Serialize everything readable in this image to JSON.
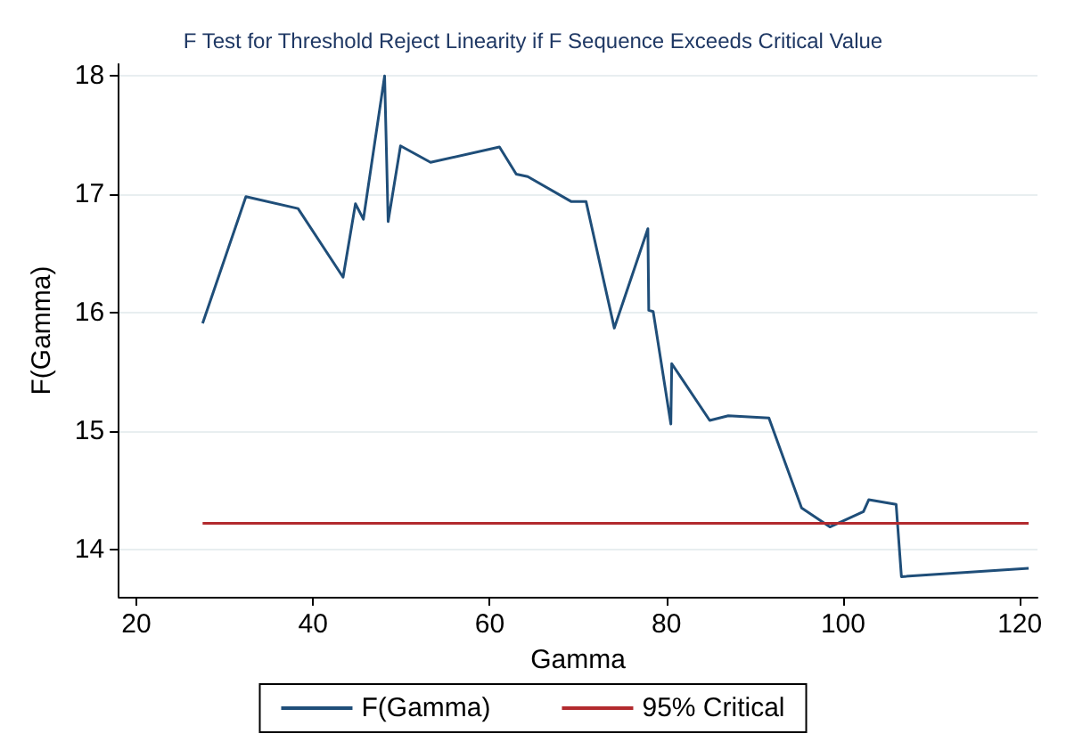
{
  "chart_data": {
    "type": "line",
    "title": "F Test for Threshold Reject Linearity if F Sequence Exceeds Critical Value",
    "xlabel": "Gamma",
    "ylabel": "F(Gamma)",
    "xlim": [
      18,
      122
    ],
    "xticks": [
      20,
      40,
      60,
      80,
      100,
      120
    ],
    "ylim": [
      13.6,
      18.1
    ],
    "yticks": [
      14,
      15,
      16,
      17,
      18
    ],
    "grid": "y",
    "legend": "bottom",
    "series": [
      {
        "name": "F(Gamma)",
        "color": "#1f4e79",
        "x": [
          27.5,
          32.4,
          38.3,
          43.4,
          44.8,
          45.7,
          48.1,
          48.5,
          49.9,
          53.3,
          61.1,
          63.0,
          64.3,
          69.2,
          70.9,
          74.1,
          77.9,
          78.0,
          78.5,
          80.5,
          80.6,
          84.9,
          87.0,
          91.6,
          95.3,
          98.5,
          102.3,
          102.9,
          106.0,
          106.6,
          121.0
        ],
        "values": [
          15.91,
          16.98,
          16.88,
          16.3,
          16.92,
          16.79,
          18.0,
          16.77,
          17.41,
          17.27,
          17.4,
          17.17,
          17.15,
          16.94,
          16.94,
          15.87,
          16.71,
          16.02,
          16.01,
          15.06,
          15.57,
          15.09,
          15.13,
          15.11,
          14.35,
          14.19,
          14.32,
          14.42,
          14.38,
          13.77,
          13.84
        ]
      },
      {
        "name": "95% Critical",
        "color": "#b22a2e",
        "x": [
          27.5,
          121.0
        ],
        "values": [
          14.22,
          14.22
        ]
      }
    ]
  }
}
